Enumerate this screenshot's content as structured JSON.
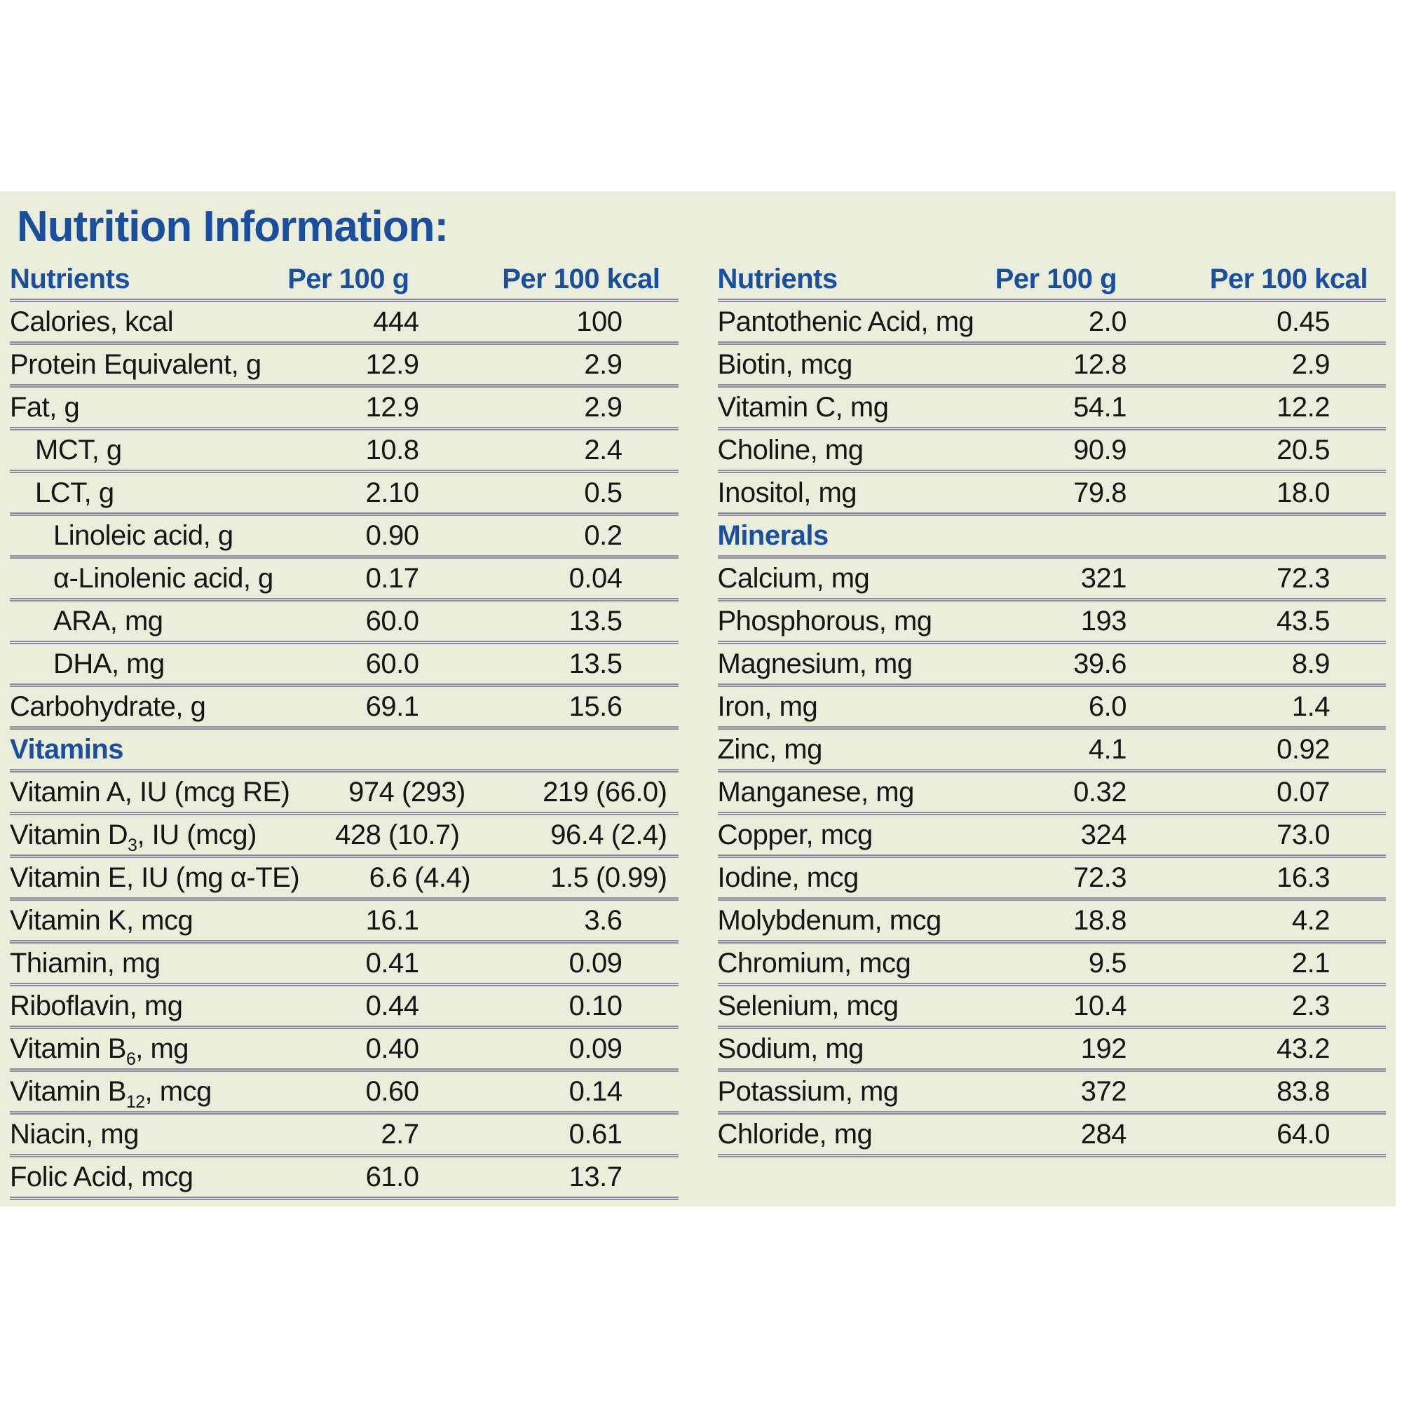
{
  "page": {
    "title": "Nutrition Information:"
  },
  "columns": {
    "nutrients": "Nutrients",
    "per_100g": "Per 100 g",
    "per_100kcal": "Per 100 kcal"
  },
  "colors": {
    "accent_blue": "#1a4f9e",
    "panel_background": "#e9edd9",
    "row_line": "#8b8b9d",
    "body_text": "#161616"
  },
  "tables": {
    "left": {
      "rows": [
        {
          "type": "data",
          "indent": 0,
          "label": "Calories, kcal",
          "per_100g": "444",
          "per_100kcal": "100"
        },
        {
          "type": "data",
          "indent": 0,
          "label": "Protein Equivalent, g",
          "per_100g": "12.9",
          "per_100kcal": "2.9"
        },
        {
          "type": "data",
          "indent": 0,
          "label": "Fat, g",
          "per_100g": "12.9",
          "per_100kcal": "2.9"
        },
        {
          "type": "data",
          "indent": 1,
          "label": "MCT, g",
          "per_100g": "10.8",
          "per_100kcal": "2.4"
        },
        {
          "type": "data",
          "indent": 1,
          "label": "LCT, g",
          "per_100g": "2.10",
          "per_100kcal": "0.5"
        },
        {
          "type": "data",
          "indent": 2,
          "label": "Linoleic acid, g",
          "per_100g": "0.90",
          "per_100kcal": "0.2"
        },
        {
          "type": "data",
          "indent": 2,
          "label": "α-Linolenic acid, g",
          "per_100g": "0.17",
          "per_100kcal": "0.04"
        },
        {
          "type": "data",
          "indent": 2,
          "label": "ARA, mg",
          "per_100g": "60.0",
          "per_100kcal": "13.5"
        },
        {
          "type": "data",
          "indent": 2,
          "label": "DHA, mg",
          "per_100g": "60.0",
          "per_100kcal": "13.5"
        },
        {
          "type": "data",
          "indent": 0,
          "label": "Carbohydrate, g",
          "per_100g": "69.1",
          "per_100kcal": "15.6"
        },
        {
          "type": "section",
          "label": "Vitamins"
        },
        {
          "type": "data",
          "indent": 0,
          "label": "Vitamin A, IU (mcg RE)",
          "per_100g": "974 (293)",
          "per_100kcal": "219 (66.0)"
        },
        {
          "type": "data",
          "indent": 0,
          "label": "Vitamin D~3~, IU (mcg)",
          "per_100g": "428 (10.7)",
          "per_100kcal": "96.4 (2.4)"
        },
        {
          "type": "data",
          "indent": 0,
          "label": "Vitamin E, IU (mg α-TE)",
          "per_100g": "6.6 (4.4)",
          "per_100kcal": "1.5 (0.99)"
        },
        {
          "type": "data",
          "indent": 0,
          "label": "Vitamin K, mcg",
          "per_100g": "16.1",
          "per_100kcal": "3.6"
        },
        {
          "type": "data",
          "indent": 0,
          "label": "Thiamin, mg",
          "per_100g": "0.41",
          "per_100kcal": "0.09"
        },
        {
          "type": "data",
          "indent": 0,
          "label": "Riboflavin, mg",
          "per_100g": "0.44",
          "per_100kcal": "0.10"
        },
        {
          "type": "data",
          "indent": 0,
          "label": "Vitamin B~6~, mg",
          "per_100g": "0.40",
          "per_100kcal": "0.09"
        },
        {
          "type": "data",
          "indent": 0,
          "label": "Vitamin B~12~, mcg",
          "per_100g": "0.60",
          "per_100kcal": "0.14"
        },
        {
          "type": "data",
          "indent": 0,
          "label": "Niacin, mg",
          "per_100g": "2.7",
          "per_100kcal": "0.61"
        },
        {
          "type": "data",
          "indent": 0,
          "label": "Folic Acid, mcg",
          "per_100g": "61.0",
          "per_100kcal": "13.7"
        }
      ]
    },
    "right": {
      "rows": [
        {
          "type": "data",
          "indent": 0,
          "label": "Pantothenic Acid, mg",
          "per_100g": "2.0",
          "per_100kcal": "0.45"
        },
        {
          "type": "data",
          "indent": 0,
          "label": "Biotin, mcg",
          "per_100g": "12.8",
          "per_100kcal": "2.9"
        },
        {
          "type": "data",
          "indent": 0,
          "label": "Vitamin C, mg",
          "per_100g": "54.1",
          "per_100kcal": "12.2"
        },
        {
          "type": "data",
          "indent": 0,
          "label": "Choline, mg",
          "per_100g": "90.9",
          "per_100kcal": "20.5"
        },
        {
          "type": "data",
          "indent": 0,
          "label": "Inositol, mg",
          "per_100g": "79.8",
          "per_100kcal": "18.0"
        },
        {
          "type": "section",
          "label": "Minerals"
        },
        {
          "type": "data",
          "indent": 0,
          "label": "Calcium, mg",
          "per_100g": "321",
          "per_100kcal": "72.3"
        },
        {
          "type": "data",
          "indent": 0,
          "label": "Phosphorous, mg",
          "per_100g": "193",
          "per_100kcal": "43.5"
        },
        {
          "type": "data",
          "indent": 0,
          "label": "Magnesium, mg",
          "per_100g": "39.6",
          "per_100kcal": "8.9"
        },
        {
          "type": "data",
          "indent": 0,
          "label": "Iron, mg",
          "per_100g": "6.0",
          "per_100kcal": "1.4"
        },
        {
          "type": "data",
          "indent": 0,
          "label": "Zinc, mg",
          "per_100g": "4.1",
          "per_100kcal": "0.92"
        },
        {
          "type": "data",
          "indent": 0,
          "label": "Manganese, mg",
          "per_100g": "0.32",
          "per_100kcal": "0.07"
        },
        {
          "type": "data",
          "indent": 0,
          "label": "Copper, mcg",
          "per_100g": "324",
          "per_100kcal": "73.0"
        },
        {
          "type": "data",
          "indent": 0,
          "label": "Iodine, mcg",
          "per_100g": "72.3",
          "per_100kcal": "16.3"
        },
        {
          "type": "data",
          "indent": 0,
          "label": "Molybdenum, mcg",
          "per_100g": "18.8",
          "per_100kcal": "4.2"
        },
        {
          "type": "data",
          "indent": 0,
          "label": "Chromium, mcg",
          "per_100g": "9.5",
          "per_100kcal": "2.1"
        },
        {
          "type": "data",
          "indent": 0,
          "label": "Selenium, mcg",
          "per_100g": "10.4",
          "per_100kcal": "2.3"
        },
        {
          "type": "data",
          "indent": 0,
          "label": "Sodium, mg",
          "per_100g": "192",
          "per_100kcal": "43.2"
        },
        {
          "type": "data",
          "indent": 0,
          "label": "Potassium, mg",
          "per_100g": "372",
          "per_100kcal": "83.8"
        },
        {
          "type": "data",
          "indent": 0,
          "label": "Chloride, mg",
          "per_100g": "284",
          "per_100kcal": "64.0"
        }
      ]
    }
  }
}
